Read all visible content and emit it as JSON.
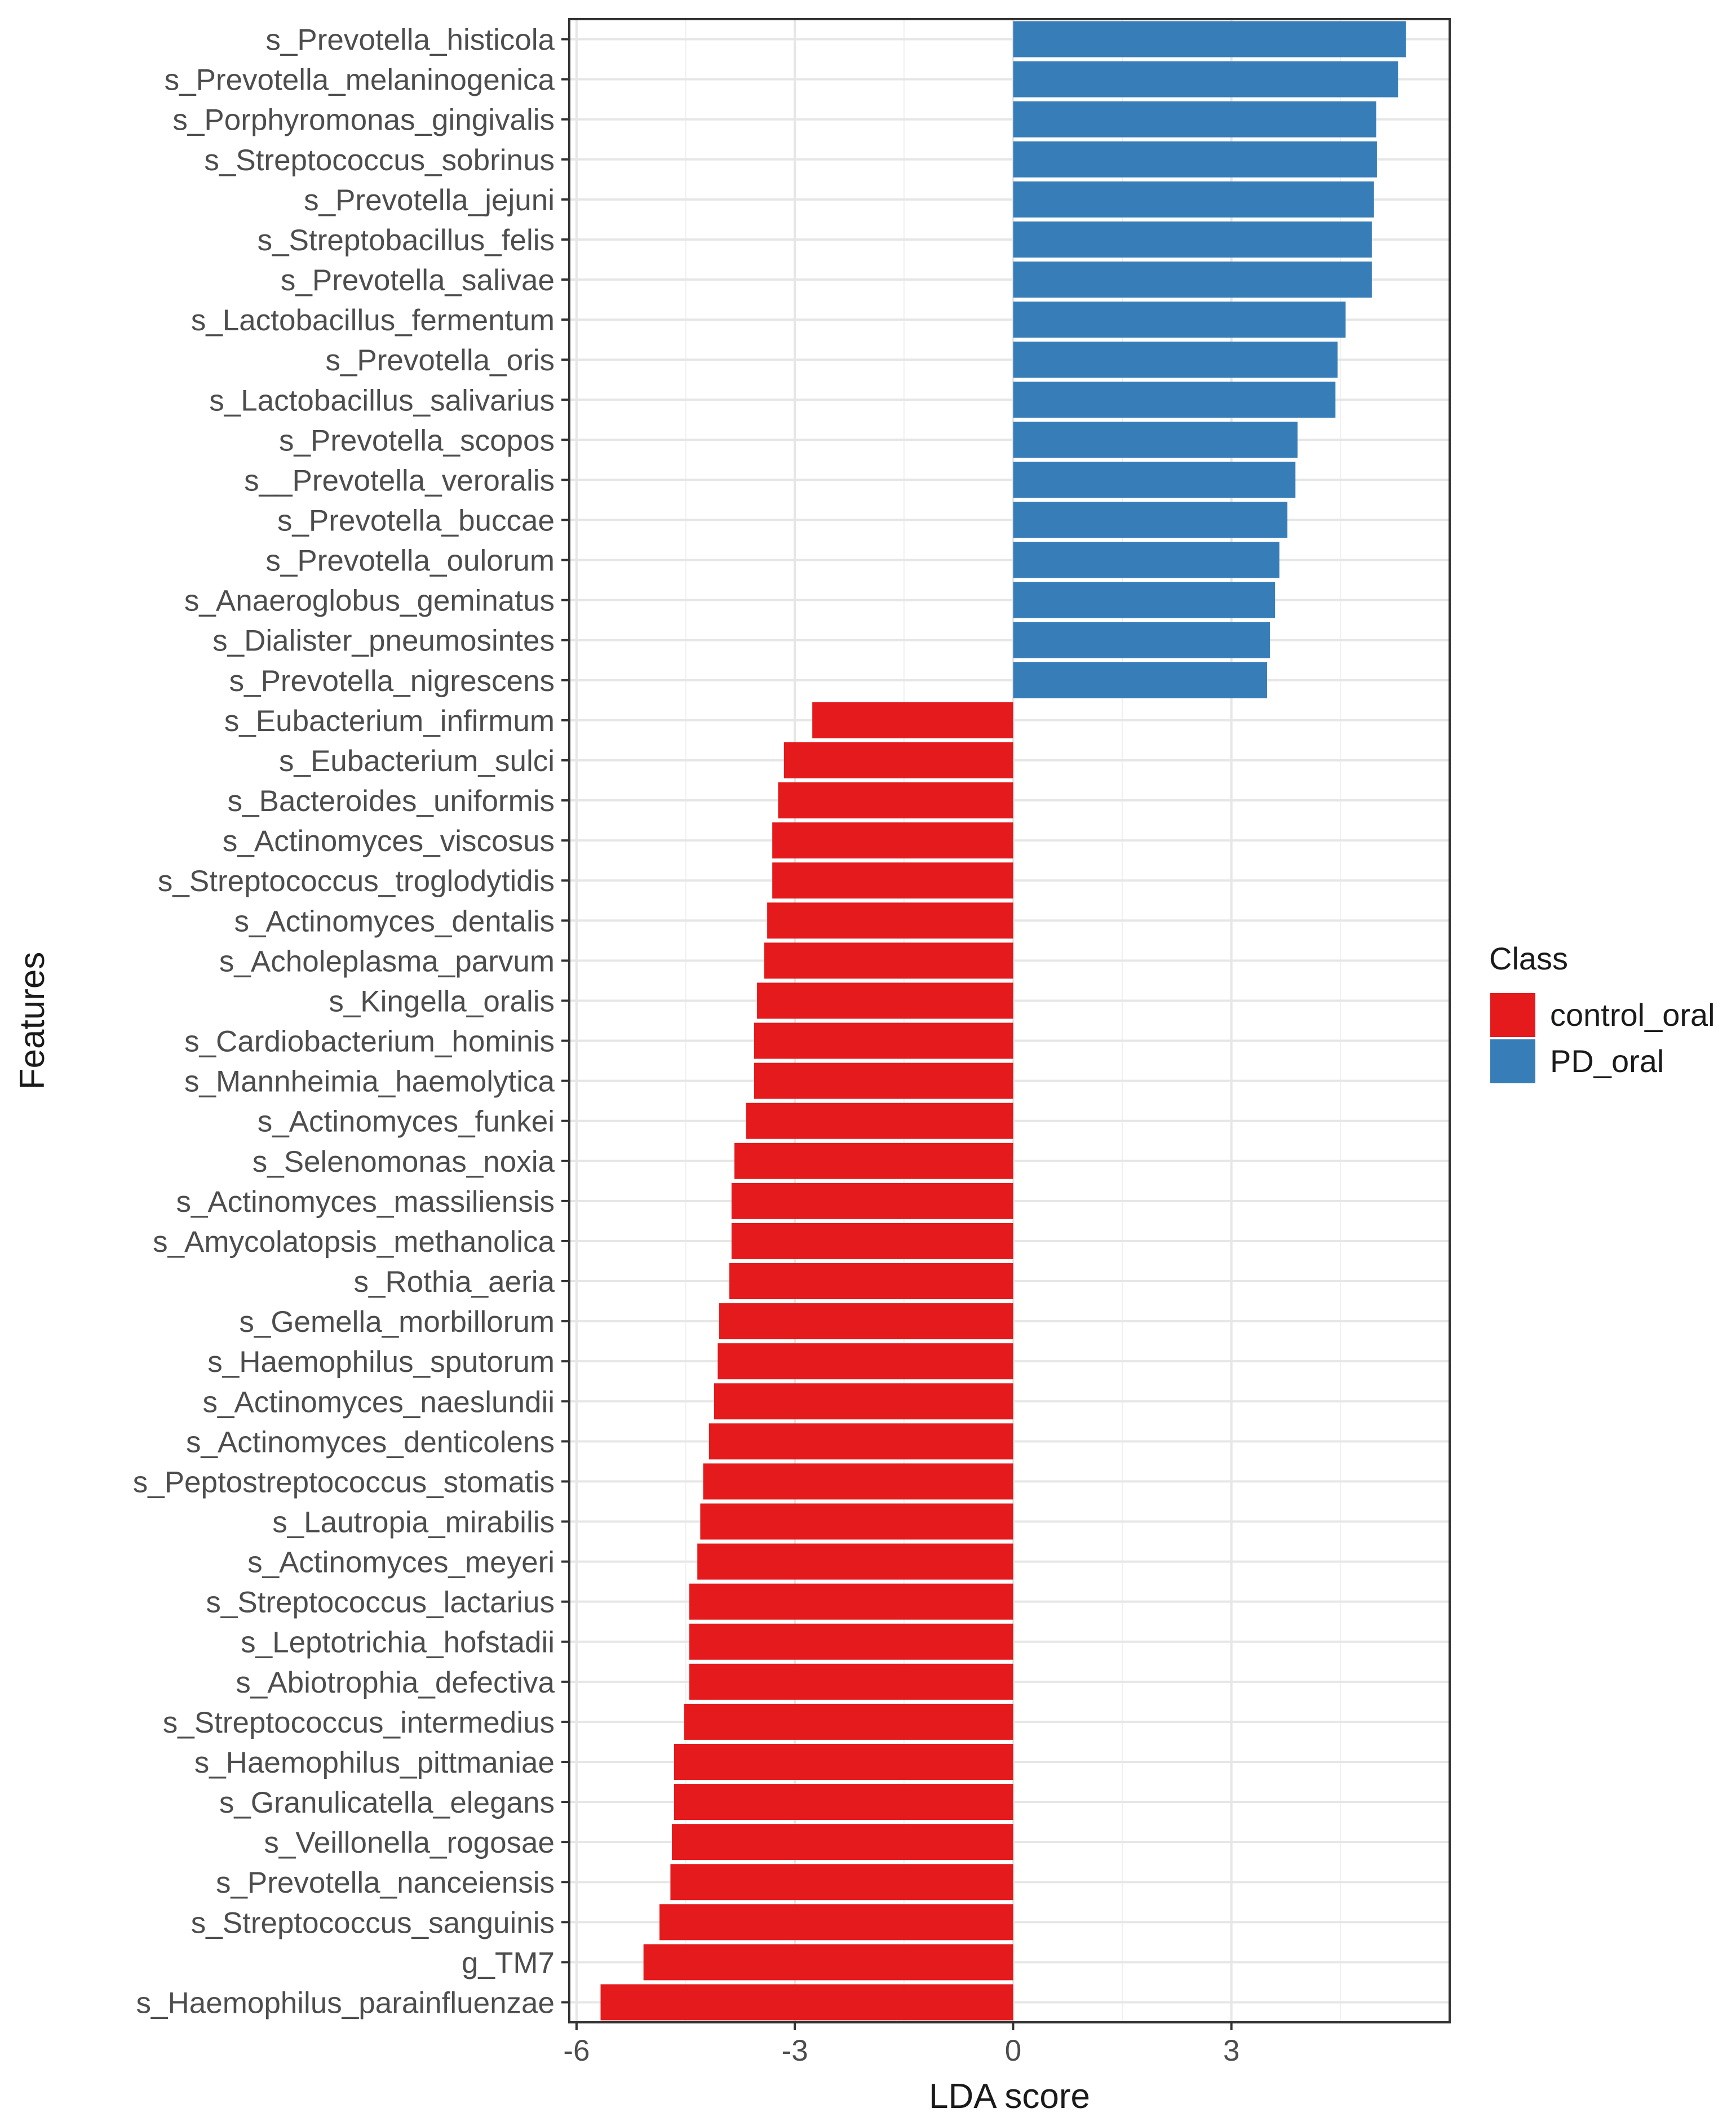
{
  "chart_data": {
    "type": "bar",
    "orientation": "horizontal",
    "xlabel": "LDA score",
    "ylabel": "Features",
    "xlim": [
      -6.1,
      6
    ],
    "xticks": [
      -6,
      -3,
      0,
      3
    ],
    "grid": true,
    "legend": {
      "title": "Class",
      "placement": "right",
      "entries": [
        {
          "label": "control_oral",
          "color": "#e41a1c"
        },
        {
          "label": "PD_oral",
          "color": "#377eb8"
        }
      ]
    },
    "categories": [
      "s_Prevotella_histicola",
      "s_Prevotella_melaninogenica",
      "s_Porphyromonas_gingivalis",
      "s_Streptococcus_sobrinus",
      "s_Prevotella_jejuni",
      "s_Streptobacillus_felis",
      "s_Prevotella_salivae",
      "s_Lactobacillus_fermentum",
      "s_Prevotella_oris",
      "s_Lactobacillus_salivarius",
      "s_Prevotella_scopos",
      "s__Prevotella_veroralis",
      "s_Prevotella_buccae",
      "s_Prevotella_oulorum",
      "s_Anaeroglobus_geminatus",
      "s_Dialister_pneumosintes",
      "s_Prevotella_nigrescens",
      "s_Eubacterium_infirmum",
      "s_Eubacterium_sulci",
      "s_Bacteroides_uniformis",
      "s_Actinomyces_viscosus",
      "s_Streptococcus_troglodytidis",
      "s_Actinomyces_dentalis",
      "s_Acholeplasma_parvum",
      "s_Kingella_oralis",
      "s_Cardiobacterium_hominis",
      "s_Mannheimia_haemolytica",
      "s_Actinomyces_funkei",
      "s_Selenomonas_noxia",
      "s_Actinomyces_massiliensis",
      "s_Amycolatopsis_methanolica",
      "s_Rothia_aeria",
      "s_Gemella_morbillorum",
      "s_Haemophilus_sputorum",
      "s_Actinomyces_naeslundii",
      "s_Actinomyces_denticolens",
      "s_Peptostreptococcus_stomatis",
      "s_Lautropia_mirabilis",
      "s_Actinomyces_meyeri",
      "s_Streptococcus_lactarius",
      "s_Leptotrichia_hofstadii",
      "s_Abiotrophia_defectiva",
      "s_Streptococcus_intermedius",
      "s_Haemophilus_pittmaniae",
      "s_Granulicatella_elegans",
      "s_Veillonella_rogosae",
      "s_Prevotella_nanceiensis",
      "s_Streptococcus_sanguinis",
      "g_TM7",
      "s_Haemophilus_parainfluenzae"
    ],
    "values": [
      5.4,
      5.29,
      4.99,
      5.0,
      4.96,
      4.93,
      4.93,
      4.57,
      4.46,
      4.43,
      3.91,
      3.88,
      3.77,
      3.66,
      3.6,
      3.53,
      3.49,
      -2.76,
      -3.15,
      -3.23,
      -3.31,
      -3.31,
      -3.38,
      -3.42,
      -3.52,
      -3.56,
      -3.56,
      -3.67,
      -3.83,
      -3.87,
      -3.87,
      -3.9,
      -4.04,
      -4.06,
      -4.11,
      -4.18,
      -4.26,
      -4.3,
      -4.34,
      -4.45,
      -4.45,
      -4.45,
      -4.52,
      -4.66,
      -4.66,
      -4.69,
      -4.71,
      -4.86,
      -5.08,
      -5.67
    ],
    "series_class": [
      "PD_oral",
      "PD_oral",
      "PD_oral",
      "PD_oral",
      "PD_oral",
      "PD_oral",
      "PD_oral",
      "PD_oral",
      "PD_oral",
      "PD_oral",
      "PD_oral",
      "PD_oral",
      "PD_oral",
      "PD_oral",
      "PD_oral",
      "PD_oral",
      "PD_oral",
      "control_oral",
      "control_oral",
      "control_oral",
      "control_oral",
      "control_oral",
      "control_oral",
      "control_oral",
      "control_oral",
      "control_oral",
      "control_oral",
      "control_oral",
      "control_oral",
      "control_oral",
      "control_oral",
      "control_oral",
      "control_oral",
      "control_oral",
      "control_oral",
      "control_oral",
      "control_oral",
      "control_oral",
      "control_oral",
      "control_oral",
      "control_oral",
      "control_oral",
      "control_oral",
      "control_oral",
      "control_oral",
      "control_oral",
      "control_oral",
      "control_oral",
      "control_oral",
      "control_oral"
    ]
  }
}
